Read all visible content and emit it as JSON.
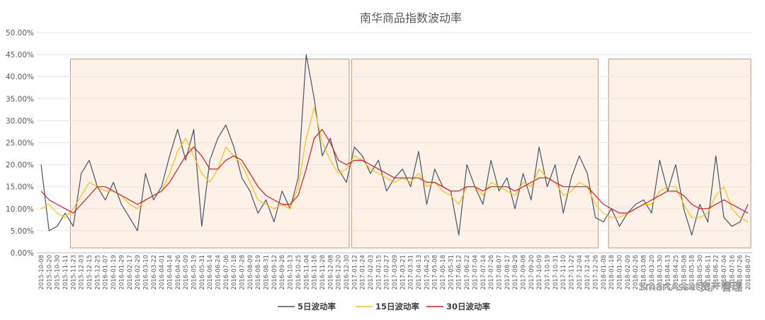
{
  "chart_data": {
    "type": "line",
    "title": "南华商品指数波动率",
    "xlabel": "",
    "ylabel": "",
    "ylim": [
      0,
      0.5
    ],
    "y_ticks": [
      "0.00%",
      "5.00%",
      "10.00%",
      "15.00%",
      "20.00%",
      "25.00%",
      "30.00%",
      "35.00%",
      "40.00%",
      "45.00%",
      "50.00%"
    ],
    "x": [
      "2015-10-08",
      "2015-10-20",
      "2015-10-30",
      "2015-11-11",
      "2015-11-23",
      "2015-12-03",
      "2015-12-15",
      "2015-12-25",
      "2016-01-07",
      "2016-01-19",
      "2016-01-29",
      "2016-02-17",
      "2016-02-29",
      "2016-03-10",
      "2016-03-22",
      "2016-04-01",
      "2016-04-14",
      "2016-04-26",
      "2016-05-09",
      "2016-05-19",
      "2016-05-31",
      "2016-06-14",
      "2016-06-24",
      "2016-07-06",
      "2016-07-18",
      "2016-07-28",
      "2016-08-09",
      "2016-08-19",
      "2016-08-31",
      "2016-09-12",
      "2016-09-26",
      "2016-10-13",
      "2016-10-25",
      "2016-11-04",
      "2016-11-16",
      "2016-11-28",
      "2016-12-08",
      "2016-12-20",
      "2016-12-30",
      "2017-01-12",
      "2017-01-24",
      "2017-02-03",
      "2017-02-15",
      "2017-02-27",
      "2017-03-09",
      "2017-03-21",
      "2017-03-31",
      "2017-04-13",
      "2017-04-25",
      "2017-05-08",
      "2017-05-18",
      "2017-05-31",
      "2017-06-12",
      "2017-06-22",
      "2017-07-04",
      "2017-07-14",
      "2017-07-26",
      "2017-08-07",
      "2017-08-17",
      "2017-08-29",
      "2017-09-08",
      "2017-09-20",
      "2017-10-09",
      "2017-10-19",
      "2017-10-31",
      "2017-11-10",
      "2017-11-22",
      "2017-12-04",
      "2017-12-14",
      "2017-12-26",
      "2018-01-08",
      "2018-01-18",
      "2018-01-30",
      "2018-02-09",
      "2018-02-26",
      "2018-03-08",
      "2018-03-20",
      "2018-03-30",
      "2018-04-13",
      "2018-04-25",
      "2018-05-08",
      "2018-05-18",
      "2018-05-30",
      "2018-06-11",
      "2018-06-22",
      "2018-07-04",
      "2018-07-16",
      "2018-07-26",
      "2018-08-07"
    ],
    "x_ticks": [
      "2015-10-08",
      "2015-10-20",
      "2015-10-30",
      "2015-11-11",
      "2015-11-23",
      "2015-12-03",
      "2015-12-15",
      "2015-12-25",
      "2016-01-07",
      "2016-01-19",
      "2016-01-29",
      "2016-02-17",
      "2016-02-29",
      "2016-03-10",
      "2016-03-22",
      "2016-04-01",
      "2016-04-14",
      "2016-04-26",
      "2016-05-09",
      "2016-05-19",
      "2016-05-31",
      "2016-06-14",
      "2016-06-24",
      "2016-07-06",
      "2016-07-18",
      "2016-07-28",
      "2016-08-09",
      "2016-08-19",
      "2016-08-31",
      "2016-09-12",
      "2016-09-26",
      "2016-10-13",
      "2016-10-25",
      "2016-11-04",
      "2016-11-16",
      "2016-11-28",
      "2016-12-08",
      "2016-12-20",
      "2016-12-30",
      "2017-01-12",
      "2017-01-24",
      "2017-02-03",
      "2017-02-15",
      "2017-02-27",
      "2017-03-09",
      "2017-03-21",
      "2017-03-31",
      "2017-04-13",
      "2017-04-25",
      "2017-05-08",
      "2017-05-18",
      "2017-05-31",
      "2017-06-12",
      "2017-06-22",
      "2017-07-04",
      "2017-07-14",
      "2017-07-26",
      "2017-08-07",
      "2017-08-17",
      "2017-08-29",
      "2017-09-08",
      "2017-09-20",
      "2017-10-09",
      "2017-10-19",
      "2017-10-31",
      "2017-11-10",
      "2017-11-22",
      "2017-12-04",
      "2017-12-14",
      "2017-12-26",
      "2018-01-08",
      "2018-01-18",
      "2018-01-30",
      "2018-02-09",
      "2018-02-26",
      "2018-03-08",
      "2018-03-20",
      "2018-03-30",
      "2018-04-13",
      "2018-04-25",
      "2018-05-08",
      "2018-05-18",
      "2018-05-30",
      "2018-06-11",
      "2018-06-22",
      "2018-07-04",
      "2018-07-16",
      "2018-07-26",
      "2018-08-07"
    ],
    "series": [
      {
        "name": "5日波动率",
        "color": "#44546a",
        "values": [
          0.2,
          0.05,
          0.06,
          0.09,
          0.06,
          0.18,
          0.21,
          0.15,
          0.12,
          0.16,
          0.11,
          0.08,
          0.05,
          0.18,
          0.12,
          0.15,
          0.22,
          0.28,
          0.21,
          0.28,
          0.06,
          0.21,
          0.26,
          0.29,
          0.24,
          0.17,
          0.14,
          0.09,
          0.12,
          0.07,
          0.14,
          0.1,
          0.17,
          0.45,
          0.35,
          0.22,
          0.26,
          0.19,
          0.16,
          0.24,
          0.22,
          0.18,
          0.21,
          0.14,
          0.17,
          0.19,
          0.15,
          0.23,
          0.11,
          0.19,
          0.15,
          0.14,
          0.04,
          0.2,
          0.15,
          0.11,
          0.21,
          0.14,
          0.17,
          0.1,
          0.18,
          0.12,
          0.24,
          0.15,
          0.2,
          0.09,
          0.17,
          0.22,
          0.18,
          0.08,
          0.07,
          0.1,
          0.06,
          0.09,
          0.11,
          0.12,
          0.09,
          0.21,
          0.14,
          0.2,
          0.1,
          0.04,
          0.11,
          0.07,
          0.22,
          0.08,
          0.06,
          0.07,
          0.11
        ]
      },
      {
        "name": "15日波动率",
        "color": "#ffc000",
        "values": [
          0.1,
          0.11,
          0.09,
          0.08,
          0.1,
          0.13,
          0.16,
          0.15,
          0.14,
          0.14,
          0.13,
          0.11,
          0.1,
          0.12,
          0.13,
          0.14,
          0.18,
          0.23,
          0.26,
          0.22,
          0.18,
          0.16,
          0.19,
          0.24,
          0.22,
          0.2,
          0.16,
          0.12,
          0.11,
          0.1,
          0.11,
          0.1,
          0.15,
          0.26,
          0.33,
          0.25,
          0.21,
          0.18,
          0.19,
          0.22,
          0.21,
          0.19,
          0.18,
          0.17,
          0.16,
          0.17,
          0.16,
          0.18,
          0.15,
          0.16,
          0.14,
          0.13,
          0.11,
          0.15,
          0.15,
          0.13,
          0.16,
          0.15,
          0.14,
          0.13,
          0.16,
          0.15,
          0.19,
          0.17,
          0.16,
          0.13,
          0.14,
          0.16,
          0.15,
          0.11,
          0.09,
          0.08,
          0.08,
          0.09,
          0.1,
          0.11,
          0.11,
          0.14,
          0.15,
          0.15,
          0.11,
          0.08,
          0.08,
          0.09,
          0.13,
          0.15,
          0.1,
          0.08,
          0.07
        ]
      },
      {
        "name": "30日波动率",
        "color": "#e8141f",
        "values": [
          0.14,
          0.12,
          0.11,
          0.1,
          0.09,
          0.11,
          0.13,
          0.15,
          0.15,
          0.14,
          0.13,
          0.12,
          0.11,
          0.12,
          0.13,
          0.14,
          0.16,
          0.19,
          0.22,
          0.24,
          0.22,
          0.19,
          0.19,
          0.21,
          0.22,
          0.21,
          0.18,
          0.15,
          0.13,
          0.12,
          0.11,
          0.11,
          0.13,
          0.19,
          0.26,
          0.28,
          0.25,
          0.21,
          0.2,
          0.21,
          0.21,
          0.2,
          0.19,
          0.18,
          0.17,
          0.17,
          0.17,
          0.17,
          0.16,
          0.16,
          0.15,
          0.14,
          0.14,
          0.15,
          0.15,
          0.14,
          0.15,
          0.15,
          0.15,
          0.14,
          0.15,
          0.16,
          0.17,
          0.17,
          0.16,
          0.15,
          0.15,
          0.15,
          0.15,
          0.13,
          0.11,
          0.1,
          0.09,
          0.09,
          0.1,
          0.11,
          0.12,
          0.13,
          0.14,
          0.14,
          0.13,
          0.11,
          0.1,
          0.1,
          0.11,
          0.12,
          0.11,
          0.1,
          0.09
        ]
      }
    ],
    "shaded_ranges": [
      [
        "2015-11-23",
        "2016-12-30"
      ],
      [
        "2017-01-12",
        "2017-12-26"
      ],
      [
        "2018-01-18",
        "2018-08-07"
      ]
    ],
    "shade_color": "#fdf1e8",
    "grid": true,
    "legend_position": "bottom",
    "watermark": "SmartAsset资产管理"
  }
}
